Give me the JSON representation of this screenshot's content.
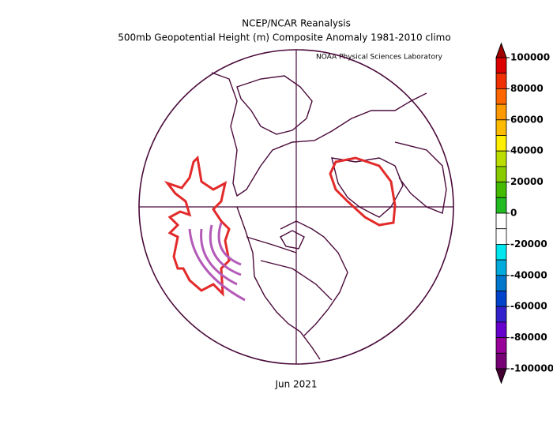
{
  "title": "NCEP/NCAR Reanalysis",
  "subtitle": "500mb Geopotential Height (m) Composite Anomaly 1981-2010 climo",
  "credit": "NOAA Physical Sciences Laboratory",
  "date": "Jun 2021",
  "colorbar": {
    "ticks": [
      100000,
      80000,
      60000,
      40000,
      20000,
      0,
      -20000,
      -40000,
      -60000,
      -80000,
      -100000
    ],
    "colors": [
      "#a00000",
      "#dd0000",
      "#f03000",
      "#ff6600",
      "#ff9900",
      "#ffbb00",
      "#ffee00",
      "#bbdd00",
      "#88cc00",
      "#44bb00",
      "#22bb22",
      "#ffffff",
      "#ffffff",
      "#00e5ee",
      "#00aadd",
      "#0077cc",
      "#0044cc",
      "#3322cc",
      "#6600cc",
      "#990099",
      "#770077",
      "#440033"
    ]
  }
}
